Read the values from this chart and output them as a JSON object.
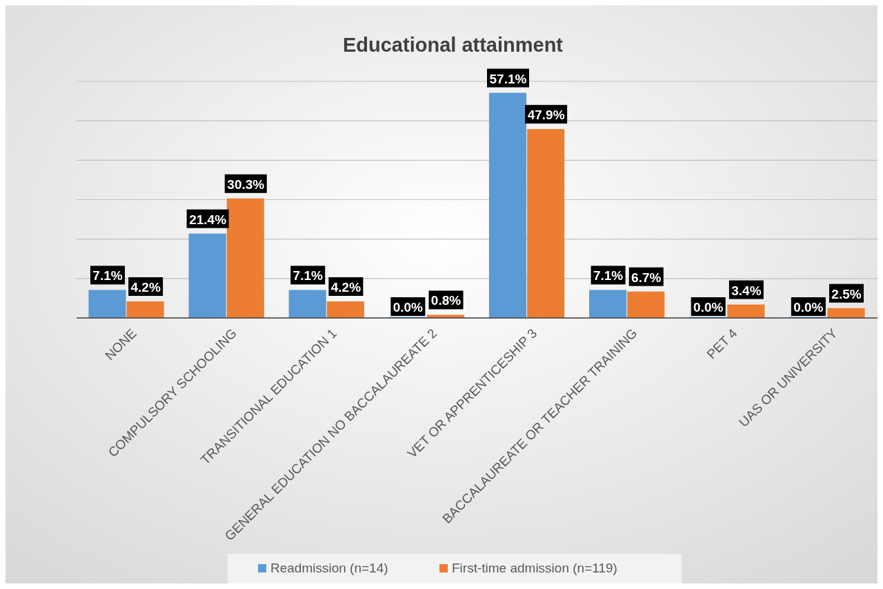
{
  "chart_data": {
    "type": "bar",
    "title": "Educational attainment",
    "categories": [
      "NONE",
      "COMPULSORY SCHOOLING",
      "TRANSITIONAL EDUCATION 1",
      "GENERAL EDUCATION NO BACCALAUREATE 2",
      "VET OR APPRENTICESHIP 3",
      "BACCALAUREATE OR TEACHER TRAINING",
      "PET 4",
      "UAS OR UNIVERSITY"
    ],
    "series": [
      {
        "name": "Readmission (n=14)",
        "color": "#5b9bd5",
        "values": [
          7.1,
          21.4,
          7.1,
          0.0,
          57.1,
          7.1,
          0.0,
          0.0
        ],
        "value_labels": [
          "7.1%",
          "21.4%",
          "7.1%",
          "0.0%",
          "57.1%",
          "7.1%",
          "0.0%",
          "0.0%"
        ]
      },
      {
        "name": "First-time admission (n=119)",
        "color": "#ed7d31",
        "values": [
          4.2,
          30.3,
          4.2,
          0.8,
          47.9,
          6.7,
          3.4,
          2.5
        ],
        "value_labels": [
          "4.2%",
          "30.3%",
          "4.2%",
          "0.8%",
          "47.9%",
          "6.7%",
          "3.4%",
          "2.5%"
        ]
      }
    ],
    "ylim": [
      0,
      60
    ],
    "yticks": [
      {
        "value": 0,
        "label": null
      },
      {
        "value": 10,
        "label": null
      },
      {
        "value": 20,
        "label": null
      },
      {
        "value": 30,
        "label": null
      },
      {
        "value": 40,
        "label": null
      },
      {
        "value": 50,
        "label": null
      },
      {
        "value": 60,
        "label": null
      }
    ],
    "tick_labels": "x",
    "grid": "y",
    "legend": "bottom"
  }
}
